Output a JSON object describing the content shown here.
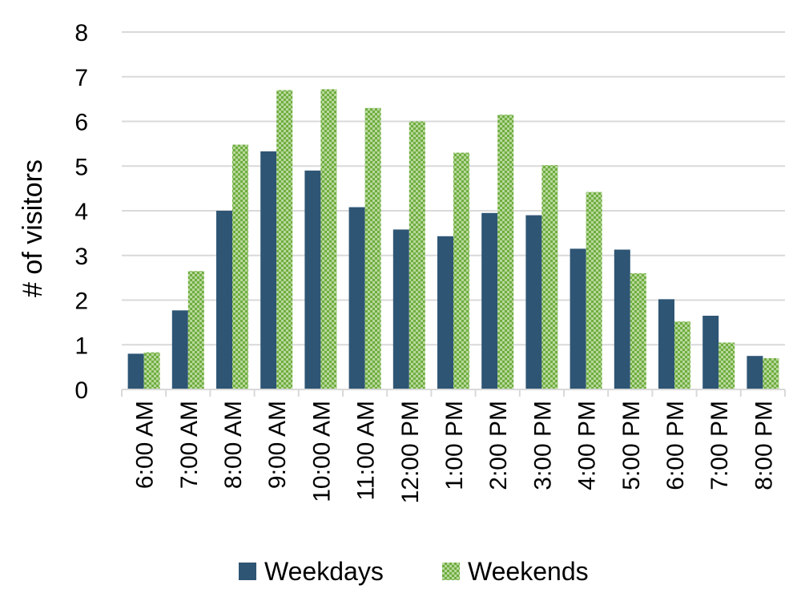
{
  "chart_data": {
    "type": "bar",
    "title": "",
    "xlabel": "",
    "ylabel": "# of visitors",
    "ylim": [
      0,
      8
    ],
    "yticks": [
      0,
      1,
      2,
      3,
      4,
      5,
      6,
      7,
      8
    ],
    "grid": true,
    "legend_position": "bottom",
    "categories": [
      "6:00 AM",
      "7:00 AM",
      "8:00 AM",
      "9:00 AM",
      "10:00 AM",
      "11:00 AM",
      "12:00 PM",
      "1:00 PM",
      "2:00 PM",
      "3:00 PM",
      "4:00 PM",
      "5:00 PM",
      "6:00 PM",
      "7:00 PM",
      "8:00 PM"
    ],
    "series": [
      {
        "name": "Weekdays",
        "color": "#2E5574",
        "pattern": "solid",
        "values": [
          0.8,
          1.77,
          4.0,
          5.33,
          4.9,
          4.08,
          3.58,
          3.43,
          3.95,
          3.9,
          3.15,
          3.13,
          2.02,
          1.65,
          0.75
        ]
      },
      {
        "name": "Weekends",
        "color": "#6FAD3F",
        "pattern": "checkered",
        "values": [
          0.83,
          2.65,
          5.48,
          6.7,
          6.72,
          6.3,
          6.0,
          5.3,
          6.15,
          5.02,
          4.42,
          2.6,
          1.52,
          1.05,
          0.7
        ]
      }
    ]
  }
}
